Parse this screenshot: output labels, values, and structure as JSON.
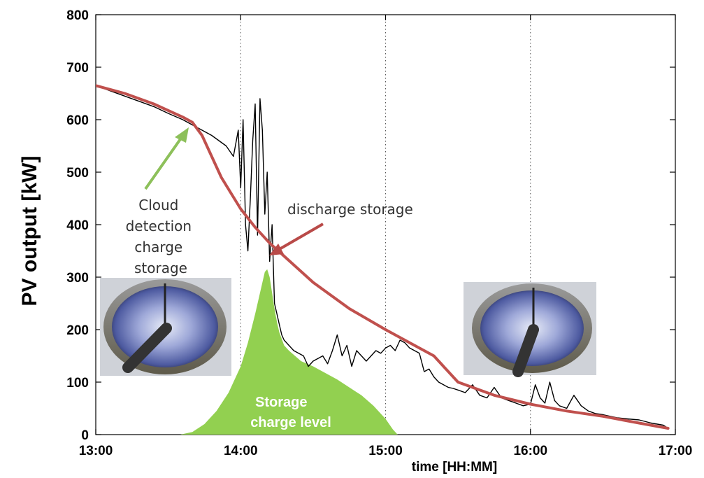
{
  "chart_data": {
    "type": "line",
    "title": "",
    "xlabel": "time [HH:MM]",
    "ylabel": "PV output [kW]",
    "xlim": [
      "13:00",
      "17:00"
    ],
    "ylim": [
      0,
      800
    ],
    "x_ticks": [
      "13:00",
      "14:00",
      "15:00",
      "16:00",
      "17:00"
    ],
    "y_ticks": [
      0,
      100,
      200,
      300,
      400,
      500,
      600,
      700,
      800
    ],
    "vertical_gridlines_at": [
      "14:00",
      "15:00",
      "16:00"
    ],
    "series": [
      {
        "color": "#000000",
        "x": [
          "13:00",
          "13:06",
          "13:12",
          "13:18",
          "13:24",
          "13:30",
          "13:36",
          "13:42",
          "13:48",
          "13:54",
          "13:57",
          "13:59",
          "14:00",
          "14:01",
          "14:02",
          "14:03",
          "14:04",
          "14:05",
          "14:06",
          "14:07",
          "14:08",
          "14:09",
          "14:10",
          "14:11",
          "14:12",
          "14:13",
          "14:14",
          "14:15",
          "14:16",
          "14:17",
          "14:18",
          "14:20",
          "14:22",
          "14:24",
          "14:26",
          "14:28",
          "14:30",
          "14:32",
          "14:34",
          "14:36",
          "14:38",
          "14:40",
          "14:42",
          "14:44",
          "14:46",
          "14:48",
          "14:50",
          "14:52",
          "14:54",
          "14:56",
          "14:58",
          "15:00",
          "15:02",
          "15:04",
          "15:06",
          "15:08",
          "15:10",
          "15:12",
          "15:14",
          "15:16",
          "15:18",
          "15:20",
          "15:22",
          "15:24",
          "15:26",
          "15:28",
          "15:30",
          "15:33",
          "15:36",
          "15:39",
          "15:42",
          "15:45",
          "15:48",
          "15:51",
          "15:54",
          "15:57",
          "16:00",
          "16:02",
          "16:04",
          "16:06",
          "16:08",
          "16:10",
          "16:12",
          "16:15",
          "16:18",
          "16:21",
          "16:24",
          "16:27",
          "16:30",
          "16:33",
          "16:36",
          "16:40",
          "16:45",
          "16:50",
          "16:55",
          "16:57"
        ],
        "y": [
          665,
          655,
          645,
          635,
          625,
          612,
          600,
          585,
          570,
          550,
          530,
          580,
          470,
          600,
          400,
          350,
          450,
          560,
          630,
          380,
          640,
          580,
          420,
          500,
          330,
          400,
          250,
          230,
          210,
          190,
          180,
          170,
          160,
          155,
          150,
          130,
          140,
          145,
          150,
          135,
          160,
          190,
          150,
          170,
          130,
          160,
          150,
          140,
          150,
          160,
          155,
          165,
          170,
          160,
          180,
          175,
          165,
          160,
          155,
          120,
          125,
          110,
          100,
          95,
          90,
          88,
          85,
          80,
          95,
          75,
          70,
          90,
          70,
          65,
          60,
          55,
          58,
          95,
          70,
          60,
          100,
          65,
          55,
          50,
          75,
          55,
          45,
          40,
          38,
          35,
          32,
          30,
          28,
          22,
          18,
          12
        ]
      },
      {
        "color": "#c0504d",
        "x": [
          "13:00",
          "13:12",
          "13:24",
          "13:36",
          "13:40",
          "13:44",
          "13:48",
          "13:52",
          "13:56",
          "14:00",
          "14:06",
          "14:12",
          "14:18",
          "14:30",
          "14:45",
          "15:00",
          "15:10",
          "15:20",
          "15:30",
          "15:45",
          "16:00",
          "16:15",
          "16:30",
          "16:45",
          "16:57"
        ],
        "y": [
          665,
          650,
          630,
          605,
          595,
          570,
          530,
          490,
          460,
          430,
          395,
          365,
          340,
          290,
          240,
          200,
          175,
          150,
          100,
          75,
          58,
          45,
          35,
          22,
          12
        ]
      },
      {
        "color": "#92d050",
        "type": "area",
        "x": [
          "13:00",
          "13:35",
          "13:40",
          "13:45",
          "13:50",
          "13:55",
          "14:00",
          "14:03",
          "14:06",
          "14:08",
          "14:10",
          "14:11",
          "14:12",
          "14:13",
          "14:14",
          "14:15",
          "14:16",
          "14:18",
          "14:20",
          "14:25",
          "14:30",
          "14:40",
          "14:50",
          "14:55",
          "15:00",
          "15:03",
          "15:05",
          "16:57"
        ],
        "y": [
          0,
          0,
          5,
          20,
          45,
          80,
          130,
          175,
          230,
          270,
          310,
          315,
          300,
          270,
          240,
          215,
          195,
          170,
          160,
          140,
          130,
          105,
          75,
          55,
          30,
          10,
          0,
          0
        ]
      }
    ],
    "annotations": {
      "cloud_lines": [
        "Cloud",
        "detection",
        "charge",
        "storage"
      ],
      "discharge": "discharge storage",
      "storage_lines": [
        "Storage",
        "charge level"
      ]
    },
    "grid": "vertical-dotted",
    "legend": "none"
  }
}
